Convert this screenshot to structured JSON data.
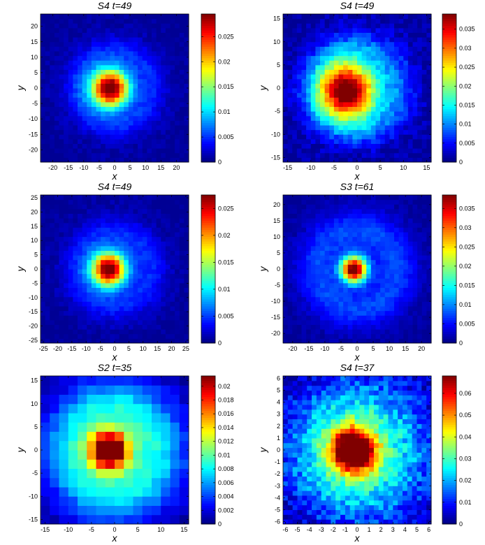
{
  "colormap": "jet",
  "chart_data": [
    {
      "type": "heatmap",
      "title": "S4 t=49",
      "xlabel": "x",
      "ylabel": "y",
      "xlim": [
        -24,
        24
      ],
      "ylim": [
        -24,
        24
      ],
      "grid_n": 32,
      "xticks": [
        -20,
        -15,
        -10,
        -5,
        0,
        5,
        10,
        15,
        20
      ],
      "yticks": [
        -20,
        -15,
        -10,
        -5,
        0,
        5,
        10,
        15,
        20
      ],
      "peak_center": [
        -1.5,
        0
      ],
      "colorbar_range": [
        0,
        0.0295
      ],
      "colorbar_ticks": [
        0,
        0.005,
        0.01,
        0.015,
        0.02,
        0.025
      ],
      "colorbar_tick_labels": [
        "0",
        "0.005",
        "0.01",
        "0.015",
        "0.02",
        "0.025"
      ]
    },
    {
      "type": "heatmap",
      "title": "S4 t=49",
      "xlabel": "x",
      "ylabel": "y",
      "xlim": [
        -16,
        16
      ],
      "ylim": [
        -16,
        16
      ],
      "grid_n": 32,
      "xticks": [
        -15,
        -10,
        -5,
        0,
        5,
        10,
        15
      ],
      "yticks": [
        -15,
        -10,
        -5,
        0,
        5,
        10,
        15
      ],
      "peak_center": [
        -2,
        -0.5
      ],
      "colorbar_range": [
        0,
        0.039
      ],
      "colorbar_ticks": [
        0,
        0.005,
        0.01,
        0.015,
        0.02,
        0.025,
        0.03,
        0.035
      ],
      "colorbar_tick_labels": [
        "0",
        "0.005",
        "0.01",
        "0.015",
        "0.02",
        "0.025",
        "0.03",
        "0.035"
      ]
    },
    {
      "type": "heatmap",
      "title": "S4 t=49",
      "xlabel": "x",
      "ylabel": "y",
      "xlim": [
        -26,
        26
      ],
      "ylim": [
        -26,
        26
      ],
      "grid_n": 32,
      "xticks": [
        -25,
        -20,
        -15,
        -10,
        -5,
        0,
        5,
        10,
        15,
        20,
        25
      ],
      "yticks": [
        -25,
        -20,
        -15,
        -10,
        -5,
        0,
        5,
        10,
        15,
        20,
        25
      ],
      "peak_center": [
        -2,
        0
      ],
      "colorbar_range": [
        0,
        0.0275
      ],
      "colorbar_ticks": [
        0,
        0.005,
        0.01,
        0.015,
        0.02,
        0.025
      ],
      "colorbar_tick_labels": [
        "0",
        "0.005",
        "0.01",
        "0.015",
        "0.02",
        "0.025"
      ]
    },
    {
      "type": "heatmap",
      "title": "S3 t=61",
      "xlabel": "x",
      "ylabel": "y",
      "xlim": [
        -23,
        23
      ],
      "ylim": [
        -23,
        23
      ],
      "grid_n": 32,
      "xticks": [
        -20,
        -15,
        -10,
        -5,
        0,
        5,
        10,
        15,
        20
      ],
      "yticks": [
        -20,
        -15,
        -10,
        -5,
        0,
        5,
        10,
        15,
        20
      ],
      "peak_center": [
        -1,
        0
      ],
      "colorbar_range": [
        0,
        0.0385
      ],
      "colorbar_ticks": [
        0,
        0.005,
        0.01,
        0.015,
        0.02,
        0.025,
        0.03,
        0.035
      ],
      "colorbar_tick_labels": [
        "0",
        "0.005",
        "0.01",
        "0.015",
        "0.02",
        "0.025",
        "0.03",
        "0.035"
      ]
    },
    {
      "type": "heatmap",
      "title": "S2 t=35",
      "xlabel": "x",
      "ylabel": "y",
      "xlim": [
        -16,
        16
      ],
      "ylim": [
        -16,
        16
      ],
      "grid_n": 16,
      "xticks": [
        -15,
        -10,
        -5,
        0,
        5,
        10,
        15
      ],
      "yticks": [
        -15,
        -10,
        -5,
        0,
        5,
        10,
        15
      ],
      "peak_center": [
        -1,
        0
      ],
      "colorbar_range": [
        0,
        0.0215
      ],
      "colorbar_ticks": [
        0,
        0.002,
        0.004,
        0.006,
        0.008,
        0.01,
        0.012,
        0.014,
        0.016,
        0.018,
        0.02
      ],
      "colorbar_tick_labels": [
        "0",
        "0.002",
        "0.004",
        "0.006",
        "0.008",
        "0.01",
        "0.012",
        "0.014",
        "0.016",
        "0.018",
        "0.02"
      ]
    },
    {
      "type": "heatmap",
      "title": "S4 t=37",
      "xlabel": "x",
      "ylabel": "y",
      "xlim": [
        -6.2,
        6.2
      ],
      "ylim": [
        -6.2,
        6.2
      ],
      "grid_n": 31,
      "xticks": [
        -6,
        -5,
        -4,
        -3,
        -2,
        -1,
        0,
        1,
        2,
        3,
        4,
        5,
        6
      ],
      "yticks": [
        -6,
        -5,
        -4,
        -3,
        -2,
        -1,
        0,
        1,
        2,
        3,
        4,
        5,
        6
      ],
      "peak_center": [
        -0.3,
        0
      ],
      "colorbar_range": [
        0,
        0.068
      ],
      "colorbar_ticks": [
        0,
        0.01,
        0.02,
        0.03,
        0.04,
        0.05,
        0.06
      ],
      "colorbar_tick_labels": [
        "0",
        "0.01",
        "0.02",
        "0.03",
        "0.04",
        "0.05",
        "0.06"
      ]
    }
  ]
}
